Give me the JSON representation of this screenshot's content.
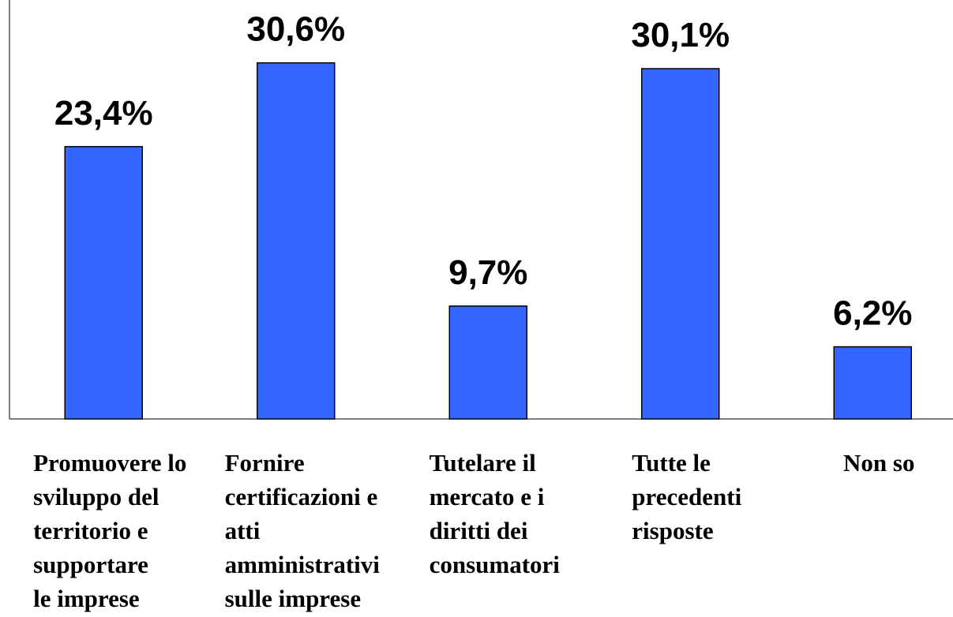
{
  "chart_data": {
    "type": "bar",
    "categories": [
      "Promuovere lo\nsviluppo del\nterritorio e\nsupportare\nle imprese",
      "Fornire\ncertificazioni e\natti\namministrativi\nsulle imprese",
      "Tutelare il\nmercato e i\ndiritti dei\nconsumatori",
      "Tutte le\nprecedenti\nrisposte",
      "Non so"
    ],
    "values": [
      23.4,
      30.6,
      9.7,
      30.1,
      6.2
    ],
    "value_labels": [
      "23,4%",
      "30,6%",
      "9,7%",
      "30,1%",
      "6,2%"
    ],
    "color": "#3366ff",
    "ylim": [
      0,
      36
    ]
  }
}
